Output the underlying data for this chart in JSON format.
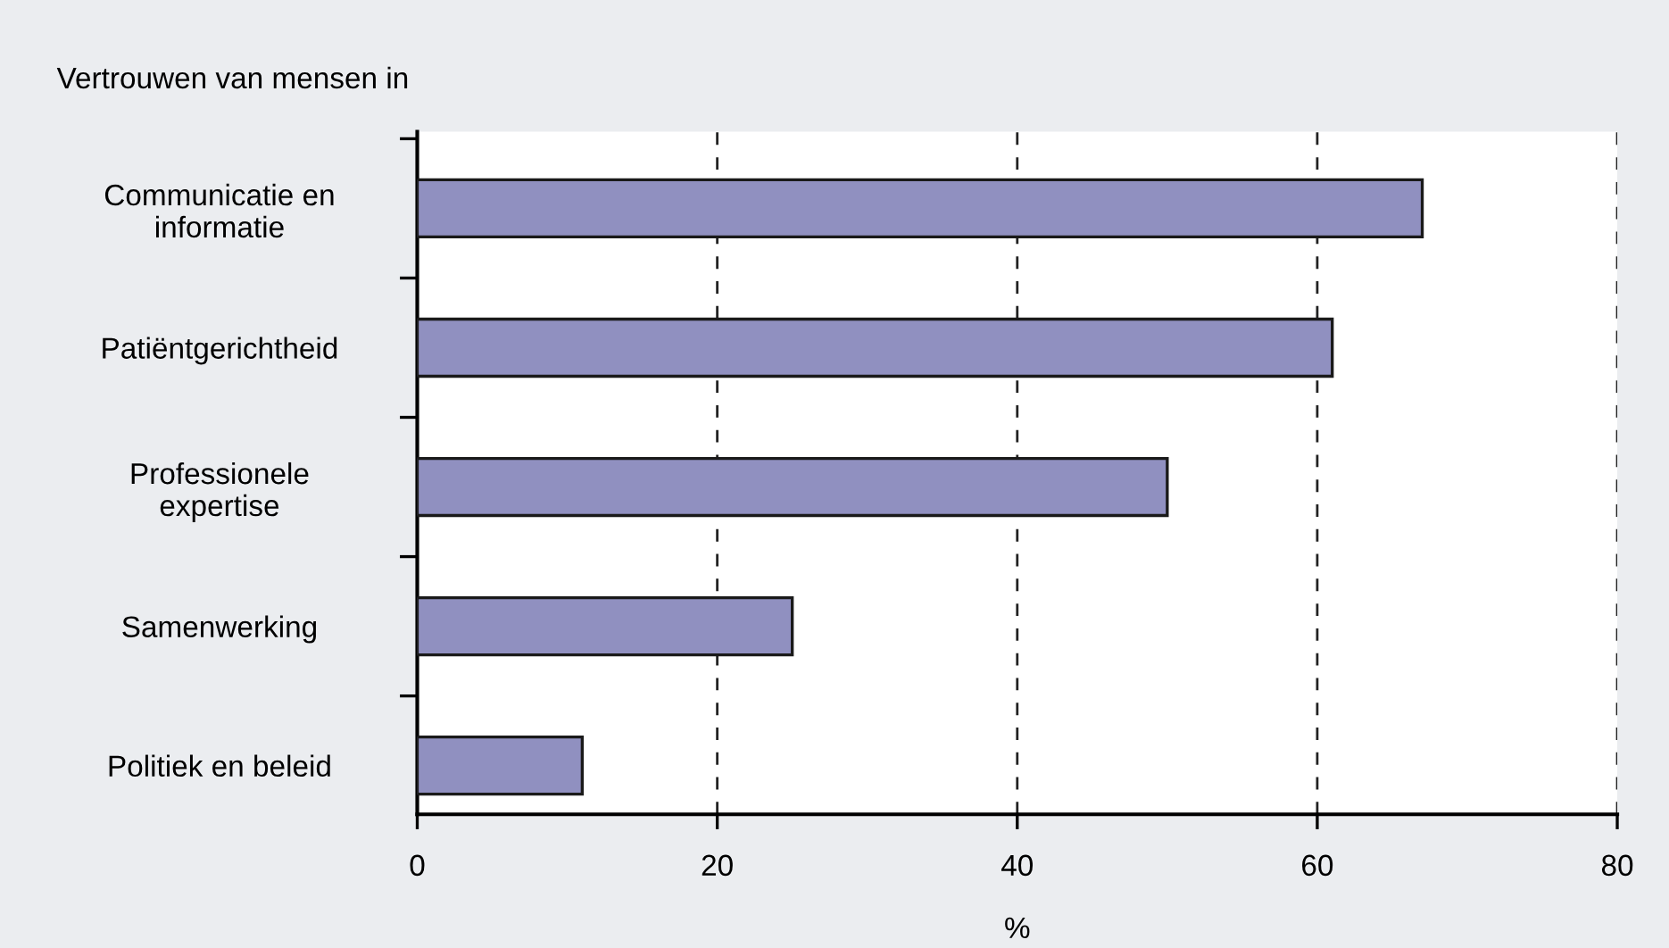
{
  "chart_data": {
    "type": "bar",
    "orientation": "horizontal",
    "title": "Vertrouwen van mensen in",
    "xlabel": "%",
    "categories": [
      "Communicatie en\ninformatie",
      "Patiëntgerichtheid",
      "Professionele\nexpertise",
      "Samenwerking",
      "Politiek en beleid"
    ],
    "values": [
      67,
      61,
      50,
      25,
      11
    ],
    "color": "#9090c0",
    "xlim": [
      0,
      80
    ],
    "xticks": [
      0,
      20,
      40,
      60,
      80
    ],
    "grid": "x"
  }
}
